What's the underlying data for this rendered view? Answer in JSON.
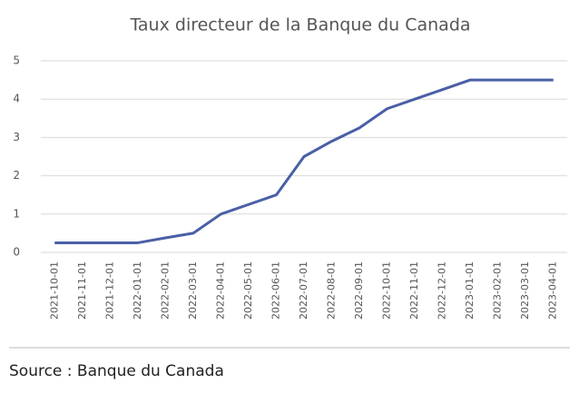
{
  "chart_data": {
    "type": "line",
    "title": "Taux directeur de la Banque du Canada",
    "categories": [
      "2021-10-01",
      "2021-11-01",
      "2021-12-01",
      "2022-01-01",
      "2022-02-01",
      "2022-03-01",
      "2022-04-01",
      "2022-05-01",
      "2022-06-01",
      "2022-07-01",
      "2022-08-01",
      "2022-09-01",
      "2022-10-01",
      "2022-11-01",
      "2022-12-01",
      "2023-01-01",
      "2023-02-01",
      "2023-03-01",
      "2023-04-01"
    ],
    "series": [
      {
        "name": "Taux directeur",
        "color": "#4a5fa6",
        "values": [
          0.25,
          0.25,
          0.25,
          0.25,
          0.38,
          0.5,
          1,
          1.25,
          1.5,
          2.5,
          2.9,
          3.25,
          3.75,
          4,
          4.25,
          4.5,
          4.5,
          4.5,
          4.5
        ]
      }
    ],
    "ylim": [
      0,
      5
    ],
    "yticks": [
      0,
      1,
      2,
      3,
      4,
      5
    ],
    "grid": true,
    "source": "Source : Banque du Canada"
  }
}
